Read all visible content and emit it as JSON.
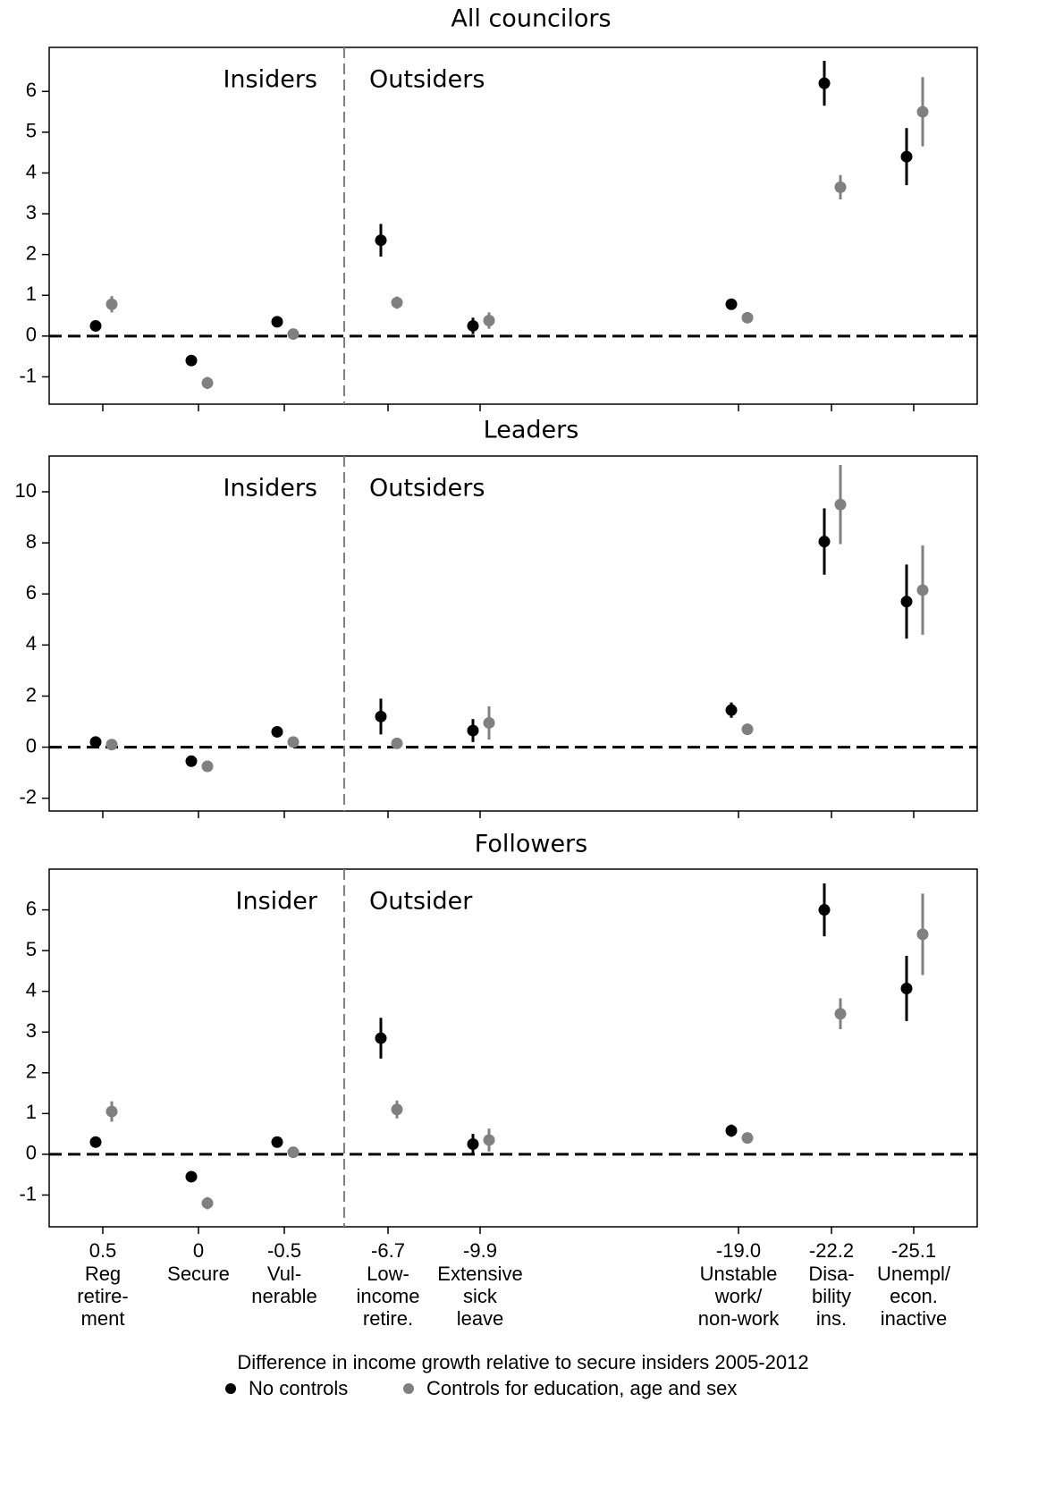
{
  "chart_data": [
    {
      "type": "errorbar",
      "title": "All councilors",
      "annotations": [
        "Insiders",
        "Outsiders"
      ],
      "ylim": [
        -1.67,
        7.08
      ],
      "yticks": [
        -1,
        0,
        1,
        2,
        3,
        4,
        5,
        6
      ],
      "hline": 0,
      "series": [
        {
          "color": "#000000",
          "values": [
            0.25,
            -0.6,
            0.35,
            2.35,
            0.25,
            0.78,
            6.2,
            4.4
          ],
          "errors": [
            0.05,
            0.05,
            0.05,
            0.4,
            0.2,
            0.08,
            0.55,
            0.7
          ]
        },
        {
          "color": "#808080",
          "values": [
            0.78,
            -1.15,
            0.05,
            0.82,
            0.38,
            0.45,
            3.65,
            5.5
          ],
          "errors": [
            0.2,
            0.15,
            0.05,
            0.15,
            0.2,
            0.05,
            0.3,
            0.85
          ]
        }
      ]
    },
    {
      "type": "errorbar",
      "title": "Leaders",
      "annotations": [
        "Insiders",
        "Outsiders"
      ],
      "ylim": [
        -2.5,
        11.4
      ],
      "yticks": [
        -2,
        0,
        2,
        4,
        6,
        8,
        10
      ],
      "hline": 0,
      "series": [
        {
          "color": "#000000",
          "values": [
            0.2,
            -0.55,
            0.6,
            1.2,
            0.65,
            1.45,
            8.05,
            5.7
          ],
          "errors": [
            0.1,
            0.1,
            0.1,
            0.7,
            0.45,
            0.3,
            1.3,
            1.45
          ]
        },
        {
          "color": "#808080",
          "values": [
            0.1,
            -0.75,
            0.2,
            0.15,
            0.95,
            0.7,
            9.5,
            6.15
          ],
          "errors": [
            0.1,
            0.1,
            0.1,
            0.1,
            0.65,
            0.1,
            1.55,
            1.75
          ]
        }
      ]
    },
    {
      "type": "errorbar",
      "title": "Followers",
      "annotations": [
        "Insider",
        "Outsider"
      ],
      "ylim": [
        -1.78,
        7.0
      ],
      "yticks": [
        -1,
        0,
        1,
        2,
        3,
        4,
        5,
        6
      ],
      "hline": 0,
      "category_values": [
        "0.5",
        "0",
        "-0.5",
        "-6.7",
        "-9.9",
        "-19.0",
        "-22.2",
        "-25.1"
      ],
      "categories": [
        [
          "Reg",
          "retire-",
          "ment"
        ],
        [
          "Secure"
        ],
        [
          "Vul-",
          "nerable"
        ],
        [
          "Low-",
          "income",
          "retire."
        ],
        [
          "Extensive",
          "sick",
          "leave"
        ],
        [
          "Unstable",
          "work/",
          "non-work"
        ],
        [
          "Disa-",
          "bility",
          "ins."
        ],
        [
          "Unempl/",
          "econ.",
          "inactive"
        ]
      ],
      "xlabel": "Difference in income growth relative to secure insiders 2005-2012",
      "series": [
        {
          "name": "No controls",
          "color": "#000000",
          "values": [
            0.3,
            -0.55,
            0.3,
            2.85,
            0.25,
            0.58,
            6.0,
            4.07
          ],
          "errors": [
            0.05,
            0.05,
            0.05,
            0.5,
            0.25,
            0.15,
            0.65,
            0.8
          ]
        },
        {
          "name": "Controls for education, age and sex",
          "color": "#808080",
          "values": [
            1.05,
            -1.2,
            0.05,
            1.1,
            0.35,
            0.4,
            3.45,
            5.4
          ],
          "errors": [
            0.25,
            0.15,
            0.05,
            0.22,
            0.28,
            0.08,
            0.38,
            1.0
          ]
        }
      ]
    }
  ]
}
